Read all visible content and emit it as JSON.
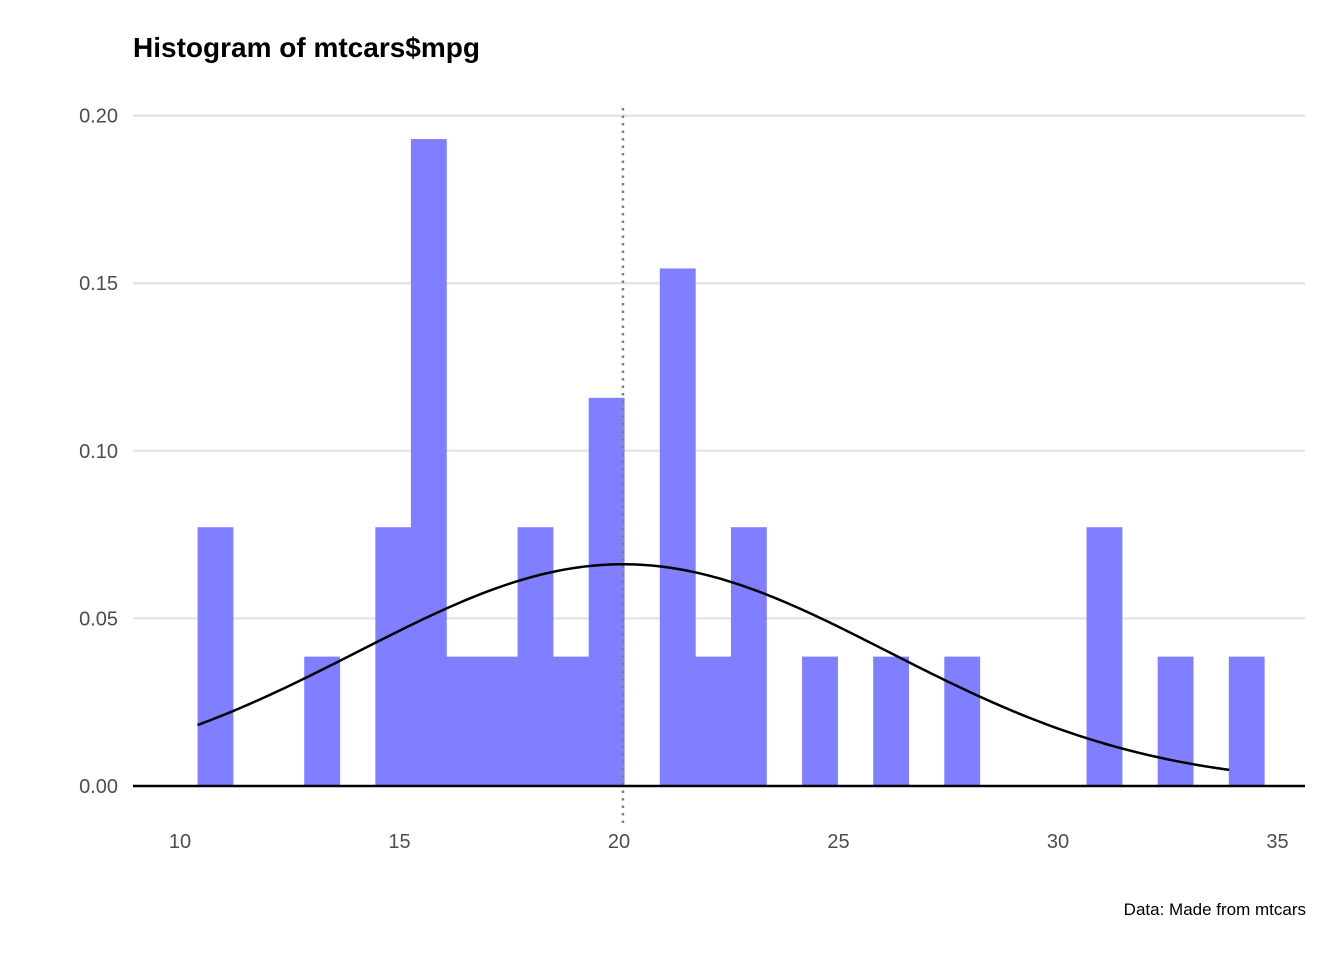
{
  "chart_data": {
    "type": "bar",
    "title": "Histogram of mtcars$mpg",
    "caption": "Data: Made from mtcars",
    "xlabel": "",
    "ylabel": "",
    "xlim": [
      10,
      35
    ],
    "ylim": [
      0,
      0.2
    ],
    "x_ticks": [
      10,
      15,
      20,
      25,
      30,
      35
    ],
    "x_tick_labels": [
      "10",
      "15",
      "20",
      "25",
      "30",
      "35"
    ],
    "y_ticks": [
      0,
      0.05,
      0.1,
      0.15,
      0.2
    ],
    "y_tick_labels": [
      "0.00",
      "0.05",
      "0.10",
      "0.15",
      "0.20"
    ],
    "grid": "horizontal",
    "bin_width": 0.8097,
    "bins": [
      {
        "x0": 10.4,
        "x1": 11.21,
        "density": 0.0772
      },
      {
        "x0": 11.21,
        "x1": 12.02,
        "density": 0
      },
      {
        "x0": 12.02,
        "x1": 12.83,
        "density": 0
      },
      {
        "x0": 12.83,
        "x1": 13.64,
        "density": 0.0386
      },
      {
        "x0": 13.64,
        "x1": 14.45,
        "density": 0
      },
      {
        "x0": 14.45,
        "x1": 15.26,
        "density": 0.0772
      },
      {
        "x0": 15.26,
        "x1": 16.07,
        "density": 0.193
      },
      {
        "x0": 16.07,
        "x1": 16.88,
        "density": 0.0386
      },
      {
        "x0": 16.88,
        "x1": 17.69,
        "density": 0.0386
      },
      {
        "x0": 17.69,
        "x1": 18.5,
        "density": 0.0772
      },
      {
        "x0": 18.5,
        "x1": 19.31,
        "density": 0.0386
      },
      {
        "x0": 19.31,
        "x1": 20.12,
        "density": 0.1158
      },
      {
        "x0": 20.12,
        "x1": 20.93,
        "density": 0
      },
      {
        "x0": 20.93,
        "x1": 21.74,
        "density": 0.1544
      },
      {
        "x0": 21.74,
        "x1": 22.55,
        "density": 0.0386
      },
      {
        "x0": 22.55,
        "x1": 23.36,
        "density": 0.0772
      },
      {
        "x0": 23.36,
        "x1": 24.17,
        "density": 0
      },
      {
        "x0": 24.17,
        "x1": 24.98,
        "density": 0.0386
      },
      {
        "x0": 24.98,
        "x1": 25.79,
        "density": 0
      },
      {
        "x0": 25.79,
        "x1": 26.6,
        "density": 0.0386
      },
      {
        "x0": 26.6,
        "x1": 27.41,
        "density": 0
      },
      {
        "x0": 27.41,
        "x1": 28.22,
        "density": 0.0386
      },
      {
        "x0": 28.22,
        "x1": 29.03,
        "density": 0
      },
      {
        "x0": 29.03,
        "x1": 29.84,
        "density": 0
      },
      {
        "x0": 29.84,
        "x1": 30.65,
        "density": 0
      },
      {
        "x0": 30.65,
        "x1": 31.46,
        "density": 0.0772
      },
      {
        "x0": 31.46,
        "x1": 32.27,
        "density": 0
      },
      {
        "x0": 32.27,
        "x1": 33.08,
        "density": 0.0386
      },
      {
        "x0": 33.08,
        "x1": 33.89,
        "density": 0
      },
      {
        "x0": 33.89,
        "x1": 34.7,
        "density": 0.0386
      }
    ],
    "density_curve": {
      "type": "normal",
      "mean": 20.09,
      "sd": 6.03,
      "x_range": [
        10.4,
        33.9
      ]
    },
    "mean_line": {
      "x": 20.09,
      "style": "dotted",
      "color": "#808080"
    },
    "bar_color": "#7f7fff",
    "curve_color": "#000000"
  }
}
